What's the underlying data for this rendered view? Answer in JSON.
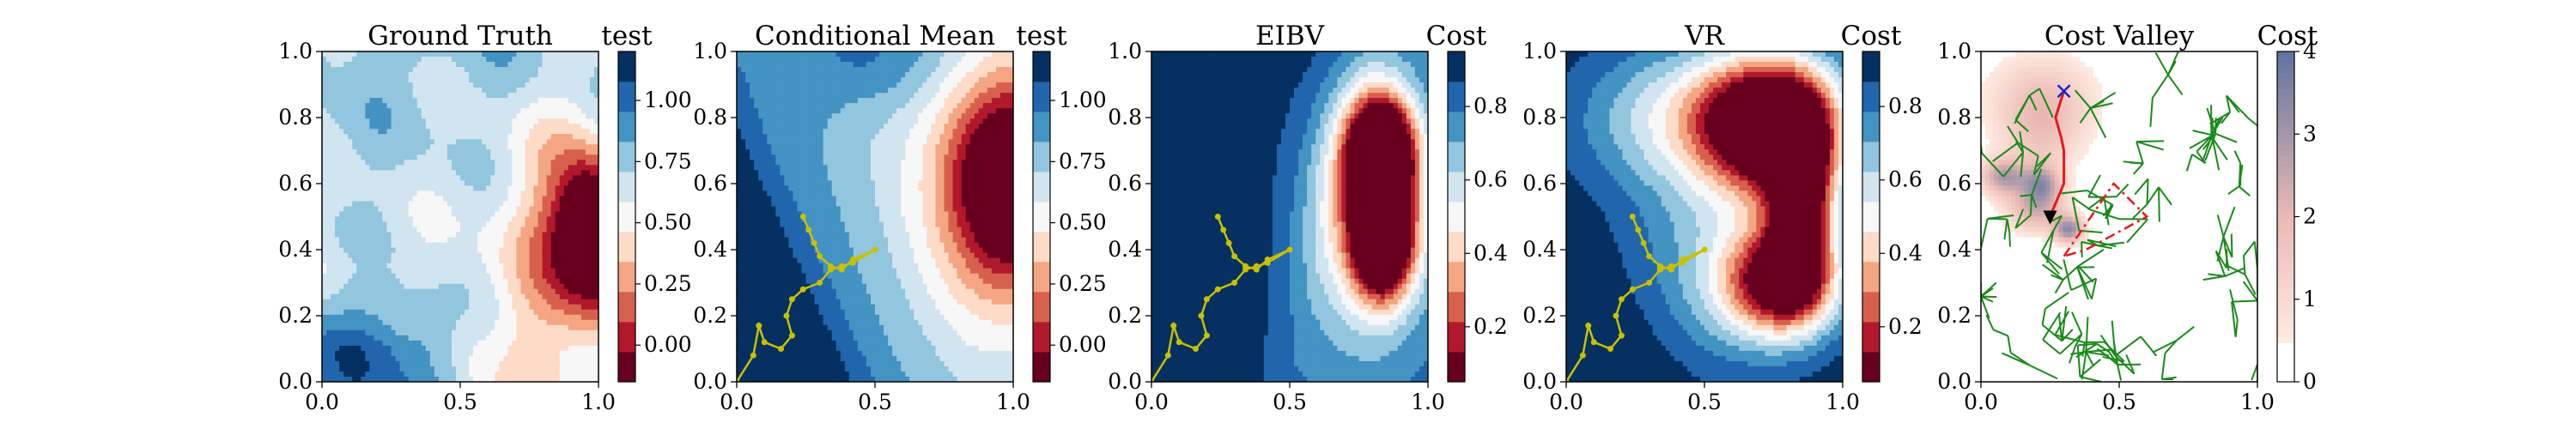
{
  "figure": {
    "panels": [
      {
        "title": "Ground Truth",
        "cb_label": "test"
      },
      {
        "title": "Conditional Mean",
        "cb_label": "test"
      },
      {
        "title": "EIBV",
        "cb_label": "Cost"
      },
      {
        "title": "VR",
        "cb_label": "Cost"
      },
      {
        "title": "Cost Valley",
        "cb_label": "Cost"
      }
    ]
  },
  "colors": {
    "rdbu_levels": [
      "#67001f",
      "#b2182b",
      "#d6604d",
      "#f4a582",
      "#fddbc7",
      "#f7f7f7",
      "#d1e5f0",
      "#92c5de",
      "#4393c3",
      "#2166ac",
      "#053061"
    ],
    "path": "#c8c000",
    "tree": "#1a8a1a",
    "planned_path": "#e41a1c",
    "polygon": "#e41a1c",
    "marker_x": "#1f1fd0",
    "marker_triangle": "#000000"
  },
  "chart_data": [
    {
      "type": "heatmap",
      "title": "Ground Truth",
      "xlabel": "",
      "ylabel": "",
      "xlim": [
        0,
        1
      ],
      "ylim": [
        0,
        1
      ],
      "x_ticks": [
        "0.0",
        "0.5",
        "1.0"
      ],
      "y_ticks": [
        "0.0",
        "0.2",
        "0.4",
        "0.6",
        "0.8",
        "1.0"
      ],
      "colorbar": {
        "label": "test",
        "range": [
          -0.15,
          1.2
        ],
        "ticks": [
          "0.00",
          "0.25",
          "0.50",
          "0.75",
          "1.00"
        ],
        "tick_values": [
          0,
          0.25,
          0.5,
          0.75,
          1.0
        ]
      }
    },
    {
      "type": "heatmap",
      "title": "Conditional Mean",
      "xlabel": "",
      "ylabel": "",
      "xlim": [
        0,
        1
      ],
      "ylim": [
        0,
        1
      ],
      "x_ticks": [
        "0.0",
        "0.5",
        "1.0"
      ],
      "y_ticks": [
        "0.0",
        "0.2",
        "0.4",
        "0.6",
        "0.8",
        "1.0"
      ],
      "colorbar": {
        "label": "test",
        "range": [
          -0.15,
          1.2
        ],
        "ticks": [
          "0.00",
          "0.25",
          "0.50",
          "0.75",
          "1.00"
        ],
        "tick_values": [
          0,
          0.25,
          0.5,
          0.75,
          1.0
        ]
      },
      "trajectory": [
        [
          0.0,
          0.0
        ],
        [
          0.06,
          0.08
        ],
        [
          0.08,
          0.17
        ],
        [
          0.1,
          0.12
        ],
        [
          0.16,
          0.1
        ],
        [
          0.2,
          0.14
        ],
        [
          0.18,
          0.2
        ],
        [
          0.2,
          0.25
        ],
        [
          0.24,
          0.28
        ],
        [
          0.3,
          0.3
        ],
        [
          0.34,
          0.34
        ],
        [
          0.38,
          0.35
        ],
        [
          0.42,
          0.36
        ],
        [
          0.5,
          0.4
        ],
        [
          0.42,
          0.37
        ],
        [
          0.38,
          0.34
        ],
        [
          0.34,
          0.35
        ],
        [
          0.3,
          0.38
        ],
        [
          0.28,
          0.42
        ],
        [
          0.26,
          0.46
        ],
        [
          0.24,
          0.5
        ]
      ]
    },
    {
      "type": "heatmap",
      "title": "EIBV",
      "xlabel": "",
      "ylabel": "",
      "xlim": [
        0,
        1
      ],
      "ylim": [
        0,
        1
      ],
      "x_ticks": [
        "0.0",
        "0.5",
        "1.0"
      ],
      "y_ticks": [
        "0.0",
        "0.2",
        "0.4",
        "0.6",
        "0.8",
        "1.0"
      ],
      "colorbar": {
        "label": "Cost",
        "range": [
          0.05,
          0.95
        ],
        "ticks": [
          "0.2",
          "0.4",
          "0.6",
          "0.8"
        ],
        "tick_values": [
          0.2,
          0.4,
          0.6,
          0.8
        ]
      },
      "trajectory": [
        [
          0.0,
          0.0
        ],
        [
          0.06,
          0.08
        ],
        [
          0.08,
          0.17
        ],
        [
          0.1,
          0.12
        ],
        [
          0.16,
          0.1
        ],
        [
          0.2,
          0.14
        ],
        [
          0.18,
          0.2
        ],
        [
          0.2,
          0.25
        ],
        [
          0.24,
          0.28
        ],
        [
          0.3,
          0.3
        ],
        [
          0.34,
          0.34
        ],
        [
          0.38,
          0.35
        ],
        [
          0.42,
          0.36
        ],
        [
          0.5,
          0.4
        ],
        [
          0.42,
          0.37
        ],
        [
          0.38,
          0.34
        ],
        [
          0.34,
          0.35
        ],
        [
          0.3,
          0.38
        ],
        [
          0.28,
          0.42
        ],
        [
          0.26,
          0.46
        ],
        [
          0.24,
          0.5
        ]
      ]
    },
    {
      "type": "heatmap",
      "title": "VR",
      "xlabel": "",
      "ylabel": "",
      "xlim": [
        0,
        1
      ],
      "ylim": [
        0,
        1
      ],
      "x_ticks": [
        "0.0",
        "0.5",
        "1.0"
      ],
      "y_ticks": [
        "0.0",
        "0.2",
        "0.4",
        "0.6",
        "0.8",
        "1.0"
      ],
      "colorbar": {
        "label": "Cost",
        "range": [
          0.05,
          0.95
        ],
        "ticks": [
          "0.2",
          "0.4",
          "0.6",
          "0.8"
        ],
        "tick_values": [
          0.2,
          0.4,
          0.6,
          0.8
        ]
      },
      "trajectory": [
        [
          0.0,
          0.0
        ],
        [
          0.06,
          0.08
        ],
        [
          0.08,
          0.17
        ],
        [
          0.1,
          0.12
        ],
        [
          0.16,
          0.1
        ],
        [
          0.2,
          0.14
        ],
        [
          0.18,
          0.2
        ],
        [
          0.2,
          0.25
        ],
        [
          0.24,
          0.28
        ],
        [
          0.3,
          0.3
        ],
        [
          0.34,
          0.34
        ],
        [
          0.38,
          0.35
        ],
        [
          0.42,
          0.36
        ],
        [
          0.5,
          0.4
        ],
        [
          0.42,
          0.37
        ],
        [
          0.38,
          0.34
        ],
        [
          0.34,
          0.35
        ],
        [
          0.3,
          0.38
        ],
        [
          0.28,
          0.42
        ],
        [
          0.26,
          0.46
        ],
        [
          0.24,
          0.5
        ]
      ]
    },
    {
      "type": "heatmap",
      "title": "Cost Valley",
      "xlabel": "",
      "ylabel": "",
      "xlim": [
        0,
        1
      ],
      "ylim": [
        0,
        1
      ],
      "x_ticks": [
        "0.0",
        "0.5",
        "1.0"
      ],
      "y_ticks": [
        "0.0",
        "0.2",
        "0.4",
        "0.6",
        "0.8",
        "1.0"
      ],
      "colorbar": {
        "label": "Cost",
        "range": [
          0,
          4
        ],
        "ticks": [
          "0",
          "1",
          "2",
          "3",
          "4"
        ],
        "tick_values": [
          0,
          1,
          2,
          3,
          4
        ],
        "colormap": "white-to-salmon"
      },
      "planned_path": [
        [
          0.3,
          0.88
        ],
        [
          0.27,
          0.8
        ],
        [
          0.29,
          0.74
        ],
        [
          0.3,
          0.7
        ],
        [
          0.3,
          0.6
        ],
        [
          0.27,
          0.54
        ],
        [
          0.25,
          0.5
        ]
      ],
      "marker_x": [
        0.3,
        0.88
      ],
      "marker_triangle": [
        0.25,
        0.5
      ],
      "polygon": [
        [
          0.3,
          0.38
        ],
        [
          0.48,
          0.6
        ],
        [
          0.6,
          0.5
        ],
        [
          0.38,
          0.4
        ],
        [
          0.3,
          0.38
        ]
      ]
    }
  ]
}
